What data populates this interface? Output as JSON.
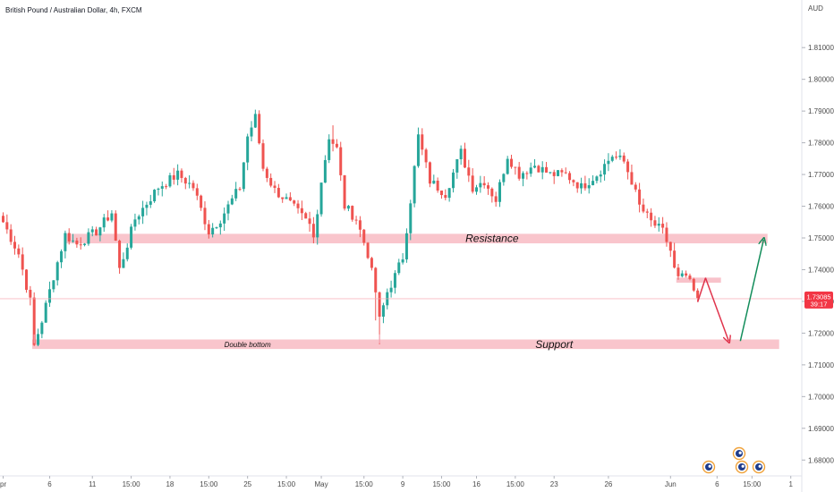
{
  "header": {
    "title": "British Pound / Australian Dollar, 4h, FXCM"
  },
  "chart_data": {
    "type": "candlestick",
    "title": "British Pound / Australian Dollar, 4h, FXCM",
    "currency_label": "AUD",
    "ylim": [
      1.675,
      1.825
    ],
    "y_ticks": [
      1.81,
      1.8,
      1.79,
      1.78,
      1.77,
      1.76,
      1.75,
      1.74,
      1.73,
      1.72,
      1.71,
      1.7,
      1.69,
      1.68
    ],
    "y_tick_labels": [
      "1.81000",
      "1.80000",
      "1.79000",
      "1.78000",
      "1.77000",
      "1.76000",
      "1.75000",
      "1.74000",
      "1.73000",
      "1.72000",
      "1.71000",
      "1.70000",
      "1.69000",
      "1.68000"
    ],
    "x_ticks": [
      {
        "label": "pr",
        "bar": 0
      },
      {
        "label": "6",
        "bar": 12
      },
      {
        "label": "11",
        "bar": 23
      },
      {
        "label": "15:00",
        "bar": 33
      },
      {
        "label": "18",
        "bar": 43
      },
      {
        "label": "15:00",
        "bar": 53
      },
      {
        "label": "25",
        "bar": 63
      },
      {
        "label": "15:00",
        "bar": 73
      },
      {
        "label": "May",
        "bar": 82
      },
      {
        "label": "15:00",
        "bar": 93
      },
      {
        "label": "9",
        "bar": 103
      },
      {
        "label": "15:00",
        "bar": 113
      },
      {
        "label": "16",
        "bar": 122
      },
      {
        "label": "15:00",
        "bar": 132
      },
      {
        "label": "23",
        "bar": 142
      },
      {
        "label": "26",
        "bar": 156
      },
      {
        "label": "Jun",
        "bar": 172
      },
      {
        "label": "6",
        "bar": 184
      },
      {
        "label": "15:00",
        "bar": 193
      },
      {
        "label": "1",
        "bar": 203
      }
    ],
    "price_anchors": [
      [
        0,
        1.755
      ],
      [
        4,
        1.745
      ],
      [
        7,
        1.73
      ],
      [
        8,
        1.716
      ],
      [
        10,
        1.724
      ],
      [
        13,
        1.738
      ],
      [
        16,
        1.751
      ],
      [
        19,
        1.748
      ],
      [
        24,
        1.752
      ],
      [
        28,
        1.758
      ],
      [
        30,
        1.74
      ],
      [
        34,
        1.756
      ],
      [
        40,
        1.766
      ],
      [
        45,
        1.77
      ],
      [
        49,
        1.766
      ],
      [
        53,
        1.752
      ],
      [
        56,
        1.756
      ],
      [
        61,
        1.766
      ],
      [
        63,
        1.782
      ],
      [
        65,
        1.788
      ],
      [
        67,
        1.772
      ],
      [
        70,
        1.765
      ],
      [
        73,
        1.762
      ],
      [
        76,
        1.758
      ],
      [
        79,
        1.754
      ],
      [
        80,
        1.75
      ],
      [
        82,
        1.768
      ],
      [
        84,
        1.782
      ],
      [
        86,
        1.778
      ],
      [
        88,
        1.76
      ],
      [
        91,
        1.756
      ],
      [
        94,
        1.745
      ],
      [
        96,
        1.733
      ],
      [
        97,
        1.724
      ],
      [
        99,
        1.733
      ],
      [
        101,
        1.738
      ],
      [
        103,
        1.744
      ],
      [
        105,
        1.762
      ],
      [
        107,
        1.782
      ],
      [
        110,
        1.768
      ],
      [
        114,
        1.764
      ],
      [
        118,
        1.777
      ],
      [
        121,
        1.766
      ],
      [
        124,
        1.768
      ],
      [
        127,
        1.762
      ],
      [
        130,
        1.776
      ],
      [
        133,
        1.77
      ],
      [
        137,
        1.773
      ],
      [
        141,
        1.77
      ],
      [
        145,
        1.77
      ],
      [
        149,
        1.766
      ],
      [
        153,
        1.77
      ],
      [
        157,
        1.776
      ],
      [
        160,
        1.774
      ],
      [
        162,
        1.768
      ],
      [
        164,
        1.76
      ],
      [
        167,
        1.755
      ],
      [
        170,
        1.752
      ],
      [
        172,
        1.746
      ],
      [
        173,
        1.74
      ],
      [
        174,
        1.737
      ],
      [
        176,
        1.738
      ],
      [
        178,
        1.733
      ],
      [
        179,
        1.73
      ]
    ],
    "last_price": "1.73085",
    "countdown": "39:17",
    "zones": [
      {
        "name": "Resistance",
        "low": 1.7483,
        "high": 1.7513
      },
      {
        "name": "Support",
        "low": 1.715,
        "high": 1.718,
        "note": "Double bottom"
      },
      {
        "name": "minor",
        "low": 1.7359,
        "high": 1.7375
      }
    ],
    "annotations": {
      "down_arrow": {
        "from_bar": 181,
        "from_price": 1.7375,
        "to_bar": 187,
        "to_price": 1.7175
      },
      "up_arrow": {
        "from_bar": 190,
        "from_price": 1.7175,
        "to_bar": 196,
        "to_price": 1.7495
      },
      "bottom_marker_bars": [
        8,
        97
      ]
    },
    "colors": {
      "up": "#26a69a",
      "down": "#ef5350",
      "zone": "#f8bfc7",
      "arrow_up": "#138d5b",
      "arrow_down": "#e0344c",
      "price_tag": "#f23645"
    }
  },
  "labels": {
    "resistance": "Resistance",
    "support": "Support",
    "double_bottom": "Double bottom"
  }
}
